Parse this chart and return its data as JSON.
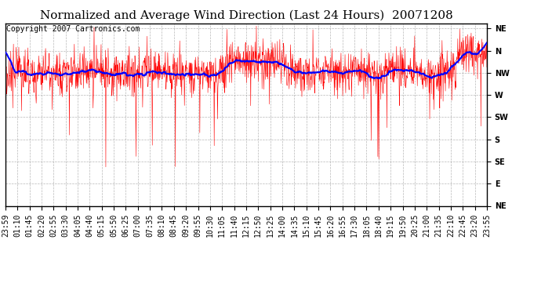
{
  "title": "Normalized and Average Wind Direction (Last 24 Hours)  20071208",
  "copyright": "Copyright 2007 Cartronics.com",
  "background_color": "#ffffff",
  "plot_bg_color": "#ffffff",
  "grid_color": "#888888",
  "ytick_labels": [
    "NE",
    "N",
    "NW",
    "W",
    "SW",
    "S",
    "SE",
    "E",
    "NE"
  ],
  "ytick_values": [
    0,
    45,
    90,
    135,
    180,
    225,
    270,
    315,
    360
  ],
  "ylim": [
    360,
    -10
  ],
  "red_line_color": "#ff0000",
  "blue_line_color": "#0000ff",
  "title_fontsize": 11,
  "copyright_fontsize": 7,
  "tick_fontsize": 7,
  "time_labels": [
    "23:59",
    "01:10",
    "01:45",
    "02:20",
    "02:55",
    "03:30",
    "04:05",
    "04:40",
    "05:15",
    "05:50",
    "06:25",
    "07:00",
    "07:35",
    "08:10",
    "08:45",
    "09:20",
    "09:55",
    "10:30",
    "11:05",
    "11:40",
    "12:15",
    "12:50",
    "13:25",
    "14:00",
    "14:35",
    "15:10",
    "15:45",
    "16:20",
    "16:55",
    "17:30",
    "18:05",
    "18:40",
    "19:15",
    "19:50",
    "20:25",
    "21:00",
    "21:35",
    "22:10",
    "22:45",
    "23:20",
    "23:55"
  ]
}
